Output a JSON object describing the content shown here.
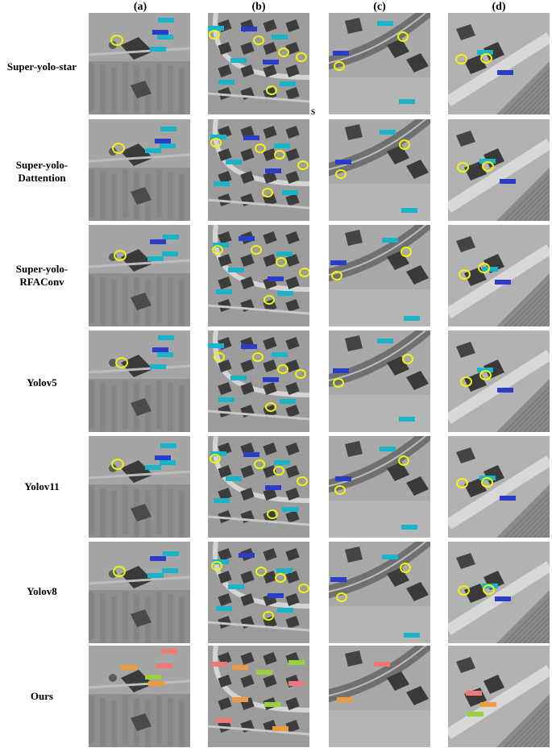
{
  "columns": [
    "(a)",
    "(b)",
    "(c)",
    "(d)"
  ],
  "rows": [
    {
      "lines": [
        "Super-yolo-star"
      ]
    },
    {
      "lines": [
        "Super-yolo-",
        "Dattention"
      ]
    },
    {
      "lines": [
        "Super-yolo-",
        "RFAConv"
      ]
    },
    {
      "lines": [
        "Yolov5"
      ]
    },
    {
      "lines": [
        "Yolov11"
      ]
    },
    {
      "lines": [
        "Yolov8"
      ]
    },
    {
      "lines": [
        "Ours"
      ]
    }
  ],
  "stray_mark": "S",
  "colors": {
    "highlight_circle": "#f2f20a",
    "baseline_box_cyan": "#18b4c8",
    "baseline_box_blue": "#2a3cc8",
    "ours_box_pink": "#f07878",
    "ours_box_orange": "#f09a40",
    "ours_box_green": "#9ad040"
  }
}
